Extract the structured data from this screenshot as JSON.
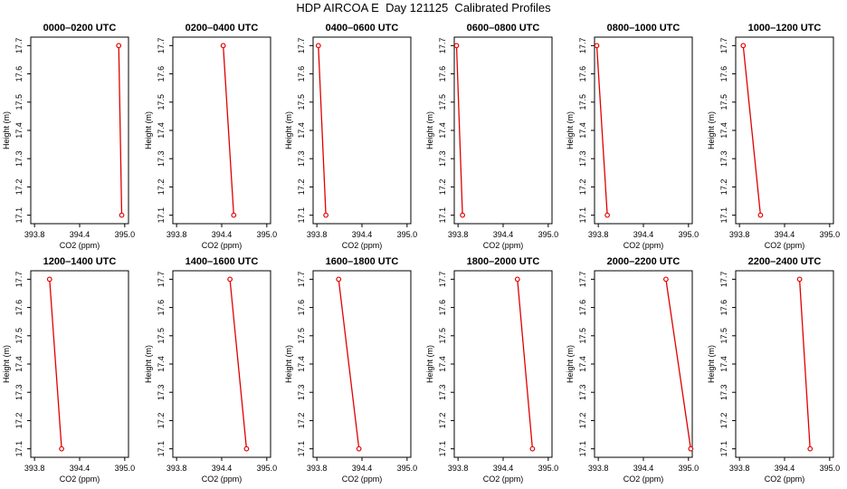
{
  "title": "HDP AIRCOA E  Day 121125  Calibrated Profiles",
  "colors": {
    "series": "#e00000",
    "axis": "#000000"
  },
  "chart_data": [
    {
      "type": "line",
      "title": "0000–0200 UTC",
      "xlabel": "CO2 (ppm)",
      "ylabel": "Height (m)",
      "xlim": [
        393.75,
        395.05
      ],
      "ylim": [
        17.07,
        17.73
      ],
      "xticks": [
        393.8,
        394.4,
        395.0
      ],
      "xticklabels": [
        "393.8",
        "394.4",
        "395.0"
      ],
      "yticks": [
        17.1,
        17.2,
        17.3,
        17.4,
        17.5,
        17.6,
        17.7
      ],
      "yticklabels": [
        "17.1",
        "17.2",
        "17.3",
        "17.4",
        "17.5",
        "17.6",
        "17.7"
      ],
      "grid": false,
      "series": [
        {
          "x": [
            394.92,
            394.96
          ],
          "y": [
            17.7,
            17.1
          ]
        }
      ]
    },
    {
      "type": "line",
      "title": "0200–0400 UTC",
      "xlabel": "CO2 (ppm)",
      "ylabel": "Height (m)",
      "xlim": [
        393.75,
        395.05
      ],
      "ylim": [
        17.07,
        17.73
      ],
      "xticks": [
        393.8,
        394.4,
        395.0
      ],
      "xticklabels": [
        "393.8",
        "394.4",
        "395.0"
      ],
      "yticks": [
        17.1,
        17.2,
        17.3,
        17.4,
        17.5,
        17.6,
        17.7
      ],
      "yticklabels": [
        "17.1",
        "17.2",
        "17.3",
        "17.4",
        "17.5",
        "17.6",
        "17.7"
      ],
      "grid": false,
      "series": [
        {
          "x": [
            394.42,
            394.56
          ],
          "y": [
            17.7,
            17.1
          ]
        }
      ]
    },
    {
      "type": "line",
      "title": "0400–0600 UTC",
      "xlabel": "CO2 (ppm)",
      "ylabel": "Height (m)",
      "xlim": [
        393.75,
        395.05
      ],
      "ylim": [
        17.07,
        17.73
      ],
      "xticks": [
        393.8,
        394.4,
        395.0
      ],
      "xticklabels": [
        "393.8",
        "394.4",
        "395.0"
      ],
      "yticks": [
        17.1,
        17.2,
        17.3,
        17.4,
        17.5,
        17.6,
        17.7
      ],
      "yticklabels": [
        "17.1",
        "17.2",
        "17.3",
        "17.4",
        "17.5",
        "17.6",
        "17.7"
      ],
      "grid": false,
      "series": [
        {
          "x": [
            393.82,
            393.92
          ],
          "y": [
            17.7,
            17.1
          ]
        }
      ]
    },
    {
      "type": "line",
      "title": "0600–0800 UTC",
      "xlabel": "CO2 (ppm)",
      "ylabel": "Height (m)",
      "xlim": [
        393.75,
        395.05
      ],
      "ylim": [
        17.07,
        17.73
      ],
      "xticks": [
        393.8,
        394.4,
        395.0
      ],
      "xticklabels": [
        "393.8",
        "394.4",
        "395.0"
      ],
      "yticks": [
        17.1,
        17.2,
        17.3,
        17.4,
        17.5,
        17.6,
        17.7
      ],
      "yticklabels": [
        "17.1",
        "17.2",
        "17.3",
        "17.4",
        "17.5",
        "17.6",
        "17.7"
      ],
      "grid": false,
      "series": [
        {
          "x": [
            393.78,
            393.86
          ],
          "y": [
            17.7,
            17.1
          ]
        }
      ]
    },
    {
      "type": "line",
      "title": "0800–1000 UTC",
      "xlabel": "CO2 (ppm)",
      "ylabel": "Height (m)",
      "xlim": [
        393.75,
        395.05
      ],
      "ylim": [
        17.07,
        17.73
      ],
      "xticks": [
        393.8,
        394.4,
        395.0
      ],
      "xticklabels": [
        "393.8",
        "394.4",
        "395.0"
      ],
      "yticks": [
        17.1,
        17.2,
        17.3,
        17.4,
        17.5,
        17.6,
        17.7
      ],
      "yticklabels": [
        "17.1",
        "17.2",
        "17.3",
        "17.4",
        "17.5",
        "17.6",
        "17.7"
      ],
      "grid": false,
      "series": [
        {
          "x": [
            393.78,
            393.92
          ],
          "y": [
            17.7,
            17.1
          ]
        }
      ]
    },
    {
      "type": "line",
      "title": "1000–1200 UTC",
      "xlabel": "CO2 (ppm)",
      "ylabel": "Height (m)",
      "xlim": [
        393.75,
        395.05
      ],
      "ylim": [
        17.07,
        17.73
      ],
      "xticks": [
        393.8,
        394.4,
        395.0
      ],
      "xticklabels": [
        "393.8",
        "394.4",
        "395.0"
      ],
      "yticks": [
        17.1,
        17.2,
        17.3,
        17.4,
        17.5,
        17.6,
        17.7
      ],
      "yticklabels": [
        "17.1",
        "17.2",
        "17.3",
        "17.4",
        "17.5",
        "17.6",
        "17.7"
      ],
      "grid": false,
      "series": [
        {
          "x": [
            393.85,
            394.08
          ],
          "y": [
            17.7,
            17.1
          ]
        }
      ]
    },
    {
      "type": "line",
      "title": "1200–1400 UTC",
      "xlabel": "CO2 (ppm)",
      "ylabel": "Height (m)",
      "xlim": [
        393.75,
        395.05
      ],
      "ylim": [
        17.07,
        17.73
      ],
      "xticks": [
        393.8,
        394.4,
        395.0
      ],
      "xticklabels": [
        "393.8",
        "394.4",
        "395.0"
      ],
      "yticks": [
        17.1,
        17.2,
        17.3,
        17.4,
        17.5,
        17.6,
        17.7
      ],
      "yticklabels": [
        "17.1",
        "17.2",
        "17.3",
        "17.4",
        "17.5",
        "17.6",
        "17.7"
      ],
      "grid": false,
      "series": [
        {
          "x": [
            394.0,
            394.16
          ],
          "y": [
            17.7,
            17.1
          ]
        }
      ]
    },
    {
      "type": "line",
      "title": "1400–1600 UTC",
      "xlabel": "CO2 (ppm)",
      "ylabel": "Height (m)",
      "xlim": [
        393.75,
        395.05
      ],
      "ylim": [
        17.07,
        17.73
      ],
      "xticks": [
        393.8,
        394.4,
        395.0
      ],
      "xticklabels": [
        "393.8",
        "394.4",
        "395.0"
      ],
      "yticks": [
        17.1,
        17.2,
        17.3,
        17.4,
        17.5,
        17.6,
        17.7
      ],
      "yticklabels": [
        "17.1",
        "17.2",
        "17.3",
        "17.4",
        "17.5",
        "17.6",
        "17.7"
      ],
      "grid": false,
      "series": [
        {
          "x": [
            394.51,
            394.73
          ],
          "y": [
            17.7,
            17.1
          ]
        }
      ]
    },
    {
      "type": "line",
      "title": "1600–1800 UTC",
      "xlabel": "CO2 (ppm)",
      "ylabel": "Height (m)",
      "xlim": [
        393.75,
        395.05
      ],
      "ylim": [
        17.07,
        17.73
      ],
      "xticks": [
        393.8,
        394.4,
        395.0
      ],
      "xticklabels": [
        "393.8",
        "394.4",
        "395.0"
      ],
      "yticks": [
        17.1,
        17.2,
        17.3,
        17.4,
        17.5,
        17.6,
        17.7
      ],
      "yticklabels": [
        "17.1",
        "17.2",
        "17.3",
        "17.4",
        "17.5",
        "17.6",
        "17.7"
      ],
      "grid": false,
      "series": [
        {
          "x": [
            394.09,
            394.36
          ],
          "y": [
            17.7,
            17.1
          ]
        }
      ]
    },
    {
      "type": "line",
      "title": "1800–2000 UTC",
      "xlabel": "CO2 (ppm)",
      "ylabel": "Height (m)",
      "xlim": [
        393.75,
        395.05
      ],
      "ylim": [
        17.07,
        17.73
      ],
      "xticks": [
        393.8,
        394.4,
        395.0
      ],
      "xticklabels": [
        "393.8",
        "394.4",
        "395.0"
      ],
      "yticks": [
        17.1,
        17.2,
        17.3,
        17.4,
        17.5,
        17.6,
        17.7
      ],
      "yticklabels": [
        "17.1",
        "17.2",
        "17.3",
        "17.4",
        "17.5",
        "17.6",
        "17.7"
      ],
      "grid": false,
      "series": [
        {
          "x": [
            394.59,
            394.79
          ],
          "y": [
            17.7,
            17.1
          ]
        }
      ]
    },
    {
      "type": "line",
      "title": "2000–2200 UTC",
      "xlabel": "CO2 (ppm)",
      "ylabel": "Height (m)",
      "xlim": [
        393.75,
        395.05
      ],
      "ylim": [
        17.07,
        17.73
      ],
      "xticks": [
        393.8,
        394.4,
        395.0
      ],
      "xticklabels": [
        "393.8",
        "394.4",
        "395.0"
      ],
      "yticks": [
        17.1,
        17.2,
        17.3,
        17.4,
        17.5,
        17.6,
        17.7
      ],
      "yticklabels": [
        "17.1",
        "17.2",
        "17.3",
        "17.4",
        "17.5",
        "17.6",
        "17.7"
      ],
      "grid": false,
      "series": [
        {
          "x": [
            394.7,
            395.03
          ],
          "y": [
            17.7,
            17.1
          ]
        }
      ]
    },
    {
      "type": "line",
      "title": "2200–2400 UTC",
      "xlabel": "CO2 (ppm)",
      "ylabel": "Height (m)",
      "xlim": [
        393.75,
        395.05
      ],
      "ylim": [
        17.07,
        17.73
      ],
      "xticks": [
        393.8,
        394.4,
        395.0
      ],
      "xticklabels": [
        "393.8",
        "394.4",
        "395.0"
      ],
      "yticks": [
        17.1,
        17.2,
        17.3,
        17.4,
        17.5,
        17.6,
        17.7
      ],
      "yticklabels": [
        "17.1",
        "17.2",
        "17.3",
        "17.4",
        "17.5",
        "17.6",
        "17.7"
      ],
      "grid": false,
      "series": [
        {
          "x": [
            394.6,
            394.74
          ],
          "y": [
            17.7,
            17.1
          ]
        }
      ]
    }
  ]
}
